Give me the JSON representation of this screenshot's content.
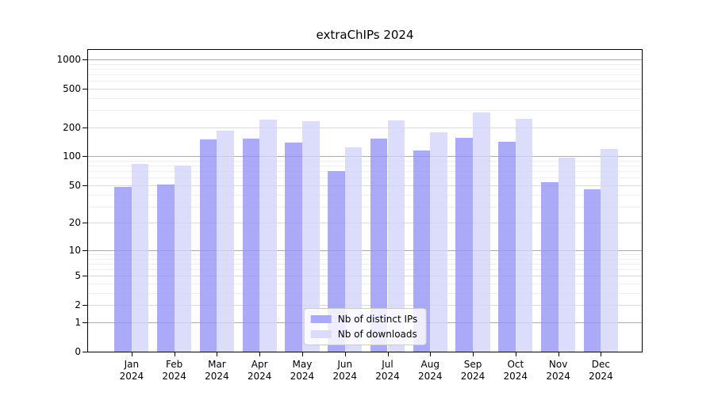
{
  "chart_data": {
    "type": "bar",
    "title": "extraChIPs 2024",
    "x_axis": {
      "months": [
        "Jan",
        "Feb",
        "Mar",
        "Apr",
        "May",
        "Jun",
        "Jul",
        "Aug",
        "Sep",
        "Oct",
        "Nov",
        "Dec"
      ],
      "year": "2024"
    },
    "y_axis": {
      "scale": "log10(value+1)",
      "ticks": [
        0,
        1,
        2,
        5,
        10,
        20,
        50,
        100,
        200,
        500,
        1000
      ],
      "top_value": 1250,
      "grid": true
    },
    "series": [
      {
        "name": "Nb of distinct IPs",
        "color": "#aaaaf8",
        "fill": "rgba(149,149,246,0.8)",
        "values": [
          48,
          51,
          149,
          153,
          138,
          71,
          152,
          116,
          155,
          141,
          54,
          45
        ]
      },
      {
        "name": "Nb of downloads",
        "color": "#dcdcf8",
        "fill": "rgba(211,211,250,0.8)",
        "values": [
          83,
          80,
          186,
          242,
          232,
          124,
          237,
          176,
          282,
          246,
          98,
          120
        ]
      }
    ],
    "legend": {
      "entries": [
        "Nb of distinct IPs",
        "Nb of downloads"
      ],
      "position": "lower-center-inside"
    }
  }
}
